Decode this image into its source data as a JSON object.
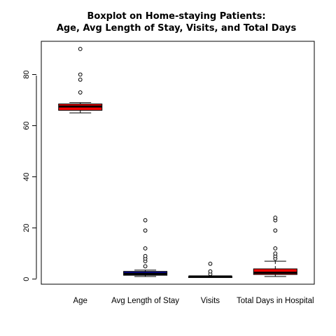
{
  "chart_data": {
    "type": "boxplot",
    "title": [
      "Boxplot on Home-staying Patients:",
      "Age, Avg Length of Stay, Visits, and Total Days"
    ],
    "xlabel": "",
    "ylabel": "",
    "ylim": [
      -2,
      93
    ],
    "yticks": [
      0,
      20,
      40,
      60,
      80
    ],
    "grid": false,
    "series": [
      {
        "label": "Age",
        "color": "#ff0000",
        "min": 65,
        "q1": 66,
        "median": 67.5,
        "q3": 68.5,
        "max": 69,
        "outliers": [
          73,
          78,
          80,
          90
        ]
      },
      {
        "label": "Avg Length of Stay",
        "color": "#00008b",
        "min": 1,
        "q1": 1.5,
        "median": 2,
        "q3": 3,
        "max": 3.5,
        "outliers": [
          5,
          7,
          8,
          9,
          12,
          19,
          23
        ]
      },
      {
        "label": "Visits",
        "color": "#000000",
        "min": 1,
        "q1": 1,
        "median": 1,
        "q3": 1,
        "max": 1,
        "outliers": [
          2,
          3,
          6
        ]
      },
      {
        "label": "Total Days in Hospital",
        "color": "#ff0000",
        "min": 1,
        "q1": 1.8,
        "median": 2.5,
        "q3": 4,
        "max": 7,
        "outliers": [
          8,
          9,
          10,
          12,
          19,
          23,
          24
        ]
      }
    ]
  }
}
